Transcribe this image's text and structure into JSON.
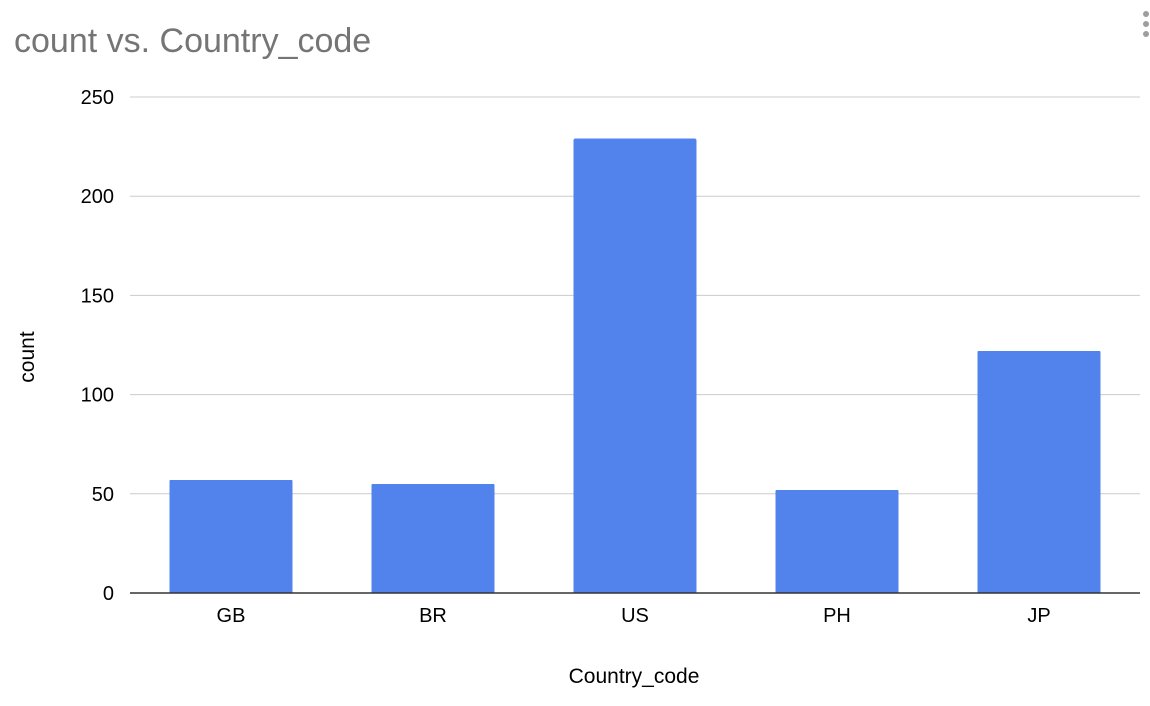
{
  "chart_data": {
    "type": "bar",
    "title": "count vs. Country_code",
    "xlabel": "Country_code",
    "ylabel": "count",
    "categories": [
      "GB",
      "BR",
      "US",
      "PH",
      "JP"
    ],
    "values": [
      57,
      55,
      229,
      52,
      122
    ],
    "ylim": [
      0,
      250
    ],
    "yticks": [
      0,
      50,
      100,
      150,
      200,
      250
    ],
    "grid": true,
    "legend": "none"
  },
  "colors": {
    "bar": "#5283ec",
    "title": "#757575",
    "grid": "#cccccc",
    "menu_icon": "#9e9e9e"
  },
  "icons": {
    "menu": "more-vert-icon"
  }
}
